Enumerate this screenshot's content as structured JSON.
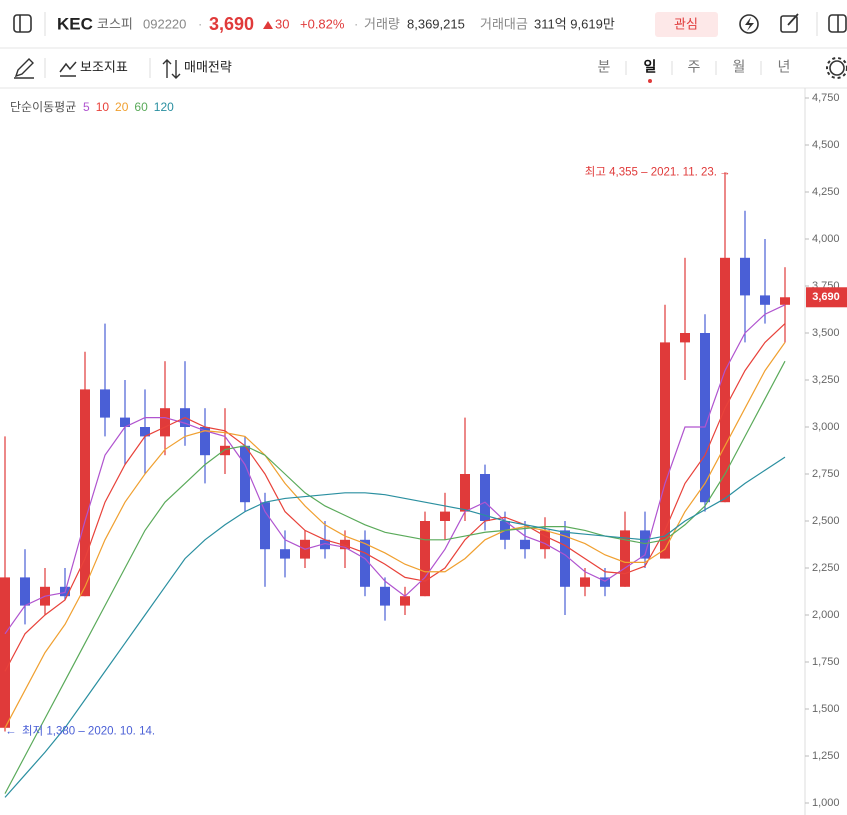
{
  "header": {
    "name": "KEC",
    "market": "코스피",
    "code": "092220",
    "price": "3,690",
    "change": "30",
    "change_pct": "+0.82%",
    "volume_label": "거래량",
    "volume": "8,369,215",
    "amount_label": "거래대금",
    "amount": "311억 9,619만",
    "watch": "관심"
  },
  "toolbar": {
    "indicators": "보조지표",
    "strategy": "매매전략",
    "periods": [
      "분",
      "일",
      "주",
      "월",
      "년"
    ],
    "active_period": 1
  },
  "chart_data": {
    "type": "candlestick",
    "legend_title": "단순이동평균",
    "up_color": "#e03a3a",
    "down_color": "#4a5fd6",
    "open": [
      1400,
      2200,
      2050,
      2150,
      2100,
      3200,
      3050,
      3000,
      2950,
      3100,
      3000,
      2850,
      2900,
      2600,
      2350,
      2300,
      2400,
      2350,
      2400,
      2150,
      2050,
      2100,
      2500,
      2550,
      2750,
      2500,
      2400,
      2350,
      2450,
      2150,
      2200,
      2150,
      2450,
      2300,
      3450,
      3500,
      2600,
      3900,
      3700,
      3650
    ],
    "high": [
      2950,
      2350,
      2250,
      2250,
      3400,
      3550,
      3250,
      3200,
      3350,
      3350,
      3100,
      3100,
      2950,
      2650,
      2450,
      2450,
      2500,
      2450,
      2450,
      2200,
      2150,
      2550,
      2650,
      3050,
      2800,
      2550,
      2500,
      2520,
      2500,
      2250,
      2250,
      2550,
      2550,
      3650,
      3900,
      3600,
      4355,
      4150,
      4000,
      3850
    ],
    "low": [
      1380,
      1950,
      2000,
      2080,
      2100,
      2950,
      2800,
      2750,
      2850,
      2900,
      2700,
      2750,
      2550,
      2150,
      2200,
      2250,
      2300,
      2250,
      2100,
      1970,
      2000,
      2100,
      2400,
      2500,
      2450,
      2350,
      2300,
      2300,
      2000,
      2100,
      2100,
      2150,
      2250,
      2300,
      3250,
      2550,
      2600,
      3450,
      3550,
      3450
    ],
    "close": [
      2200,
      2050,
      2150,
      2100,
      3200,
      3050,
      3000,
      2950,
      3100,
      3000,
      2850,
      2900,
      2600,
      2350,
      2300,
      2400,
      2350,
      2400,
      2150,
      2050,
      2100,
      2500,
      2550,
      2750,
      2500,
      2400,
      2350,
      2450,
      2150,
      2200,
      2150,
      2450,
      2300,
      3450,
      3500,
      2600,
      3900,
      3700,
      3650,
      3690
    ],
    "series": [
      {
        "name": "5",
        "color": "#b054cf",
        "values": [
          1900,
          2050,
          2100,
          2120,
          2500,
          2850,
          3000,
          3050,
          3050,
          3020,
          2980,
          2950,
          2800,
          2550,
          2400,
          2350,
          2380,
          2360,
          2300,
          2180,
          2100,
          2200,
          2350,
          2550,
          2600,
          2500,
          2420,
          2380,
          2320,
          2230,
          2180,
          2250,
          2320,
          2700,
          3000,
          3000,
          3300,
          3500,
          3600,
          3650
        ]
      },
      {
        "name": "10",
        "color": "#e8423a",
        "values": [
          1700,
          1900,
          2000,
          2080,
          2300,
          2600,
          2800,
          2950,
          3000,
          3050,
          3000,
          2980,
          2900,
          2750,
          2550,
          2450,
          2400,
          2370,
          2330,
          2270,
          2200,
          2180,
          2250,
          2400,
          2500,
          2520,
          2480,
          2420,
          2370,
          2300,
          2230,
          2220,
          2260,
          2450,
          2700,
          2850,
          3100,
          3300,
          3450,
          3550
        ]
      },
      {
        "name": "20",
        "color": "#f0a030",
        "values": [
          1400,
          1600,
          1800,
          1950,
          2150,
          2400,
          2600,
          2750,
          2880,
          2950,
          2980,
          2970,
          2950,
          2850,
          2700,
          2580,
          2480,
          2420,
          2380,
          2330,
          2270,
          2230,
          2230,
          2300,
          2400,
          2450,
          2470,
          2450,
          2420,
          2380,
          2320,
          2280,
          2280,
          2350,
          2550,
          2700,
          2900,
          3100,
          3300,
          3450
        ]
      },
      {
        "name": "60",
        "color": "#5aaa5a",
        "values": [
          1050,
          1250,
          1450,
          1650,
          1850,
          2050,
          2250,
          2450,
          2600,
          2700,
          2800,
          2880,
          2900,
          2850,
          2750,
          2650,
          2580,
          2530,
          2480,
          2440,
          2420,
          2400,
          2400,
          2420,
          2440,
          2450,
          2460,
          2470,
          2470,
          2450,
          2420,
          2400,
          2380,
          2400,
          2480,
          2580,
          2750,
          2950,
          3150,
          3350
        ]
      },
      {
        "name": "120",
        "color": "#2a8fa0",
        "values": [
          1030,
          1150,
          1270,
          1400,
          1550,
          1700,
          1850,
          2000,
          2150,
          2300,
          2400,
          2480,
          2550,
          2600,
          2620,
          2630,
          2640,
          2650,
          2650,
          2640,
          2620,
          2600,
          2580,
          2560,
          2530,
          2500,
          2480,
          2460,
          2440,
          2430,
          2420,
          2410,
          2400,
          2420,
          2500,
          2560,
          2620,
          2700,
          2770,
          2840
        ]
      }
    ],
    "ylim": [
      1000,
      4750
    ],
    "yticks": [
      {
        "value": 1000,
        "label": "1,000"
      },
      {
        "value": 1250,
        "label": "1,250"
      },
      {
        "value": 1500,
        "label": "1,500"
      },
      {
        "value": 1750,
        "label": "1,750"
      },
      {
        "value": 2000,
        "label": "2,000"
      },
      {
        "value": 2250,
        "label": "2,250"
      },
      {
        "value": 2500,
        "label": "2,500"
      },
      {
        "value": 2750,
        "label": "2,750"
      },
      {
        "value": 3000,
        "label": "3,000"
      },
      {
        "value": 3250,
        "label": "3,250"
      },
      {
        "value": 3500,
        "label": "3,500"
      },
      {
        "value": 3750,
        "label": "3,750"
      },
      {
        "value": 4000,
        "label": "4,000"
      },
      {
        "value": 4250,
        "label": "4,250"
      },
      {
        "value": 4500,
        "label": "4,500"
      },
      {
        "value": 4750,
        "label": "4,750"
      }
    ],
    "annotations": {
      "high": "최고 4,355 – 2021. 11. 23.",
      "low": "최저 1,380 – 2020. 10. 14."
    }
  }
}
